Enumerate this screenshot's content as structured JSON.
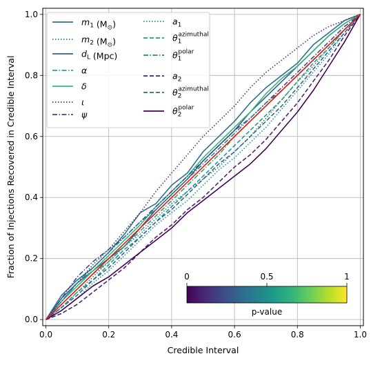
{
  "chart_data": {
    "type": "line",
    "title": "",
    "xlabel": "Credible Interval",
    "ylabel": "Fraction of Injections Recovered in Credible Interval",
    "xlim": [
      -0.01,
      1.01
    ],
    "ylim": [
      -0.02,
      1.02
    ],
    "xticks": [
      "0.0",
      "0.2",
      "0.4",
      "0.6",
      "0.8",
      "1.0"
    ],
    "yticks": [
      "0.0",
      "0.2",
      "0.4",
      "0.6",
      "0.8",
      "1.0"
    ],
    "grid": true,
    "legend_placement": "top-left",
    "diagonal": {
      "color": "#e8180c",
      "x": [
        0,
        1
      ],
      "y": [
        0,
        1
      ]
    },
    "series": [
      {
        "name": "m_1 (M_⊙)",
        "base": "m",
        "sub": "1",
        "suffix": " (M",
        "sun": true,
        "style": "solid",
        "color": "#2d6f8e",
        "x": [
          0,
          0.05,
          0.1,
          0.15,
          0.2,
          0.25,
          0.3,
          0.35,
          0.4,
          0.45,
          0.5,
          0.55,
          0.6,
          0.65,
          0.7,
          0.75,
          0.8,
          0.85,
          0.9,
          0.95,
          1
        ],
        "y": [
          0,
          0.08,
          0.13,
          0.17,
          0.22,
          0.28,
          0.35,
          0.38,
          0.44,
          0.48,
          0.55,
          0.6,
          0.65,
          0.71,
          0.76,
          0.8,
          0.84,
          0.9,
          0.94,
          0.98,
          1
        ]
      },
      {
        "name": "m_2 (M_⊙)",
        "base": "m",
        "sub": "2",
        "suffix": " (M",
        "sun": true,
        "style": "dotted",
        "color": "#2a788e",
        "x": [
          0,
          0.05,
          0.1,
          0.15,
          0.2,
          0.25,
          0.3,
          0.35,
          0.4,
          0.45,
          0.5,
          0.55,
          0.6,
          0.65,
          0.7,
          0.75,
          0.8,
          0.85,
          0.9,
          0.95,
          1
        ],
        "y": [
          0,
          0.04,
          0.09,
          0.14,
          0.19,
          0.24,
          0.28,
          0.33,
          0.38,
          0.42,
          0.46,
          0.5,
          0.55,
          0.6,
          0.66,
          0.72,
          0.78,
          0.83,
          0.89,
          0.95,
          1
        ]
      },
      {
        "name": "d_L (Mpc)",
        "base": "d",
        "sub": "L",
        "suffix": " (Mpc)",
        "style": "solid",
        "color": "#355f8d",
        "x": [
          0,
          0.05,
          0.1,
          0.15,
          0.2,
          0.25,
          0.3,
          0.35,
          0.4,
          0.45,
          0.5,
          0.55,
          0.6,
          0.65,
          0.7,
          0.75,
          0.8,
          0.85,
          0.9,
          0.95,
          1
        ],
        "y": [
          0,
          0.07,
          0.12,
          0.16,
          0.2,
          0.24,
          0.3,
          0.36,
          0.41,
          0.46,
          0.52,
          0.57,
          0.62,
          0.68,
          0.73,
          0.78,
          0.83,
          0.88,
          0.93,
          0.97,
          1
        ]
      },
      {
        "name": "α",
        "base": "α",
        "style": "dashdot",
        "color": "#22a884",
        "x": [
          0,
          0.05,
          0.1,
          0.15,
          0.2,
          0.25,
          0.3,
          0.35,
          0.4,
          0.45,
          0.5,
          0.55,
          0.6,
          0.65,
          0.7,
          0.75,
          0.8,
          0.85,
          0.9,
          0.95,
          1
        ],
        "y": [
          0,
          0.05,
          0.1,
          0.15,
          0.19,
          0.24,
          0.29,
          0.34,
          0.39,
          0.44,
          0.49,
          0.54,
          0.6,
          0.65,
          0.7,
          0.75,
          0.8,
          0.85,
          0.9,
          0.95,
          1
        ]
      },
      {
        "name": "δ",
        "base": "δ",
        "style": "solid",
        "color": "#35b779",
        "x": [
          0,
          0.05,
          0.1,
          0.15,
          0.2,
          0.25,
          0.3,
          0.35,
          0.4,
          0.45,
          0.5,
          0.55,
          0.6,
          0.65,
          0.7,
          0.75,
          0.8,
          0.85,
          0.9,
          0.95,
          1
        ],
        "y": [
          0,
          0.06,
          0.11,
          0.16,
          0.21,
          0.26,
          0.31,
          0.37,
          0.42,
          0.47,
          0.53,
          0.58,
          0.63,
          0.68,
          0.74,
          0.79,
          0.83,
          0.88,
          0.93,
          0.97,
          1
        ]
      },
      {
        "name": "ι",
        "base": "ι",
        "style": "dotted",
        "color": "#472f7d",
        "x": [
          0,
          0.05,
          0.1,
          0.15,
          0.2,
          0.25,
          0.3,
          0.35,
          0.4,
          0.45,
          0.5,
          0.55,
          0.6,
          0.65,
          0.7,
          0.75,
          0.8,
          0.85,
          0.9,
          0.95,
          1
        ],
        "y": [
          0,
          0.06,
          0.12,
          0.18,
          0.23,
          0.29,
          0.35,
          0.42,
          0.48,
          0.54,
          0.6,
          0.65,
          0.7,
          0.76,
          0.81,
          0.85,
          0.89,
          0.93,
          0.96,
          0.98,
          1
        ]
      },
      {
        "name": "ψ",
        "base": "ψ",
        "style": "dashdot",
        "color": "#3e4a89",
        "x": [
          0,
          0.05,
          0.1,
          0.15,
          0.2,
          0.25,
          0.3,
          0.35,
          0.4,
          0.45,
          0.5,
          0.55,
          0.6,
          0.65,
          0.7,
          0.75,
          0.8,
          0.85,
          0.9,
          0.95,
          1
        ],
        "y": [
          0,
          0.07,
          0.14,
          0.19,
          0.23,
          0.27,
          0.32,
          0.37,
          0.42,
          0.47,
          0.52,
          0.57,
          0.62,
          0.66,
          0.71,
          0.76,
          0.81,
          0.86,
          0.91,
          0.96,
          1
        ]
      },
      {
        "name": "a_1",
        "base": "a",
        "sub": "1",
        "style": "dotted",
        "color": "#21918c",
        "x": [
          0,
          0.05,
          0.1,
          0.15,
          0.2,
          0.25,
          0.3,
          0.35,
          0.4,
          0.45,
          0.5,
          0.55,
          0.6,
          0.65,
          0.7,
          0.75,
          0.8,
          0.85,
          0.9,
          0.95,
          1
        ],
        "y": [
          0,
          0.03,
          0.07,
          0.12,
          0.16,
          0.21,
          0.26,
          0.31,
          0.35,
          0.39,
          0.44,
          0.49,
          0.53,
          0.58,
          0.63,
          0.69,
          0.75,
          0.81,
          0.87,
          0.94,
          1
        ]
      },
      {
        "name": "θ_1^azimuthal",
        "base": "θ",
        "sub": "1",
        "sup": "azimuthal",
        "style": "dashed",
        "color": "#1f9a8a",
        "x": [
          0,
          0.05,
          0.1,
          0.15,
          0.2,
          0.25,
          0.3,
          0.35,
          0.4,
          0.45,
          0.5,
          0.55,
          0.6,
          0.65,
          0.7,
          0.75,
          0.8,
          0.85,
          0.9,
          0.95,
          1
        ],
        "y": [
          0,
          0.04,
          0.09,
          0.13,
          0.18,
          0.23,
          0.27,
          0.32,
          0.37,
          0.42,
          0.47,
          0.52,
          0.57,
          0.62,
          0.67,
          0.72,
          0.78,
          0.84,
          0.89,
          0.95,
          1
        ]
      },
      {
        "name": "θ_1^polar",
        "base": "θ",
        "sub": "1",
        "sup": "polar",
        "style": "dashdot",
        "color": "#26828e",
        "x": [
          0,
          0.05,
          0.1,
          0.15,
          0.2,
          0.25,
          0.3,
          0.35,
          0.4,
          0.45,
          0.5,
          0.55,
          0.6,
          0.65,
          0.7,
          0.75,
          0.8,
          0.85,
          0.9,
          0.95,
          1
        ],
        "y": [
          0,
          0.06,
          0.12,
          0.17,
          0.22,
          0.27,
          0.32,
          0.36,
          0.41,
          0.46,
          0.51,
          0.56,
          0.61,
          0.66,
          0.71,
          0.75,
          0.8,
          0.85,
          0.9,
          0.95,
          1
        ]
      },
      {
        "name": "a_2",
        "base": "a",
        "sub": "2",
        "style": "dashed",
        "color": "#482475",
        "x": [
          0,
          0.05,
          0.1,
          0.15,
          0.2,
          0.25,
          0.3,
          0.35,
          0.4,
          0.45,
          0.5,
          0.55,
          0.6,
          0.65,
          0.7,
          0.75,
          0.8,
          0.85,
          0.9,
          0.95,
          1
        ],
        "y": [
          0,
          0.02,
          0.05,
          0.09,
          0.13,
          0.17,
          0.22,
          0.27,
          0.31,
          0.36,
          0.4,
          0.45,
          0.5,
          0.54,
          0.59,
          0.65,
          0.71,
          0.78,
          0.85,
          0.93,
          1
        ]
      },
      {
        "name": "θ_2^azimuthal",
        "base": "θ",
        "sub": "2",
        "sup": "azimuthal",
        "style": "dashed",
        "color": "#31688e",
        "x": [
          0,
          0.05,
          0.1,
          0.15,
          0.2,
          0.25,
          0.3,
          0.35,
          0.4,
          0.45,
          0.5,
          0.55,
          0.6,
          0.65,
          0.7,
          0.75,
          0.8,
          0.85,
          0.9,
          0.95,
          1
        ],
        "y": [
          0,
          0.04,
          0.08,
          0.13,
          0.17,
          0.22,
          0.27,
          0.32,
          0.36,
          0.41,
          0.46,
          0.51,
          0.55,
          0.6,
          0.65,
          0.7,
          0.76,
          0.82,
          0.88,
          0.94,
          1
        ]
      },
      {
        "name": "θ_2^polar",
        "base": "θ",
        "sub": "2",
        "sup": "polar",
        "style": "solid",
        "color": "#440154",
        "x": [
          0,
          0.05,
          0.1,
          0.15,
          0.2,
          0.25,
          0.3,
          0.35,
          0.4,
          0.45,
          0.5,
          0.55,
          0.6,
          0.65,
          0.7,
          0.75,
          0.8,
          0.85,
          0.9,
          0.95,
          1
        ],
        "y": [
          0,
          0.03,
          0.07,
          0.11,
          0.14,
          0.18,
          0.22,
          0.26,
          0.3,
          0.35,
          0.39,
          0.43,
          0.47,
          0.51,
          0.56,
          0.62,
          0.68,
          0.75,
          0.83,
          0.91,
          1
        ]
      }
    ],
    "colorbar": {
      "label": "p-value",
      "ticks": [
        "0",
        "0.5",
        "1"
      ],
      "tick_values": [
        0,
        0.5,
        1
      ],
      "colormap": [
        "#440154",
        "#482878",
        "#3e4989",
        "#31688e",
        "#26828e",
        "#1f9e89",
        "#35b779",
        "#6ece58",
        "#b5de2b",
        "#fde725"
      ]
    }
  }
}
